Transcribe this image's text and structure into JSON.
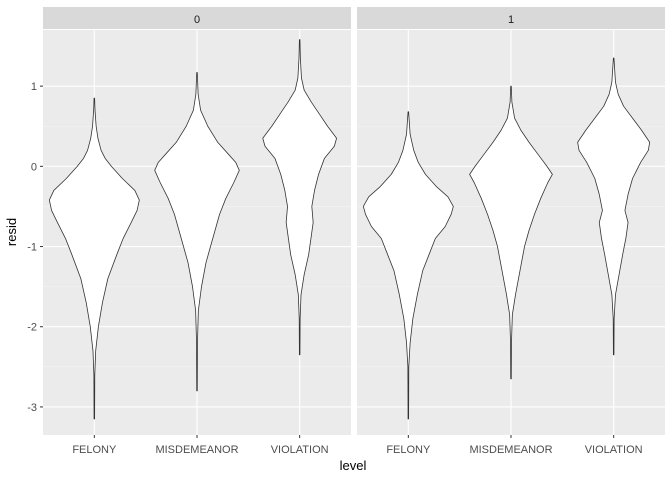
{
  "chart_data": {
    "type": "violin",
    "xlabel": "level",
    "ylabel": "resid",
    "ylim": [
      -3.35,
      1.7
    ],
    "y_ticks": [
      -3,
      -2,
      -1,
      0,
      1
    ],
    "categories": [
      "FELONY",
      "MISDEMEANOR",
      "VIOLATION"
    ],
    "panels": [
      {
        "label": "0",
        "violins": [
          {
            "category": "FELONY",
            "min": -3.15,
            "max": 0.85,
            "profile": [
              [
                -3.15,
                0.006
              ],
              [
                -2.6,
                0.01
              ],
              [
                -2.3,
                0.03
              ],
              [
                -2.0,
                0.09
              ],
              [
                -1.7,
                0.18
              ],
              [
                -1.4,
                0.3
              ],
              [
                -1.1,
                0.5
              ],
              [
                -0.9,
                0.64
              ],
              [
                -0.7,
                0.82
              ],
              [
                -0.55,
                0.95
              ],
              [
                -0.42,
                1.0
              ],
              [
                -0.3,
                0.9
              ],
              [
                -0.15,
                0.62
              ],
              [
                0.0,
                0.38
              ],
              [
                0.1,
                0.24
              ],
              [
                0.2,
                0.15
              ],
              [
                0.35,
                0.08
              ],
              [
                0.5,
                0.04
              ],
              [
                0.7,
                0.015
              ],
              [
                0.85,
                0.006
              ]
            ]
          },
          {
            "category": "MISDEMEANOR",
            "min": -2.8,
            "max": 1.17,
            "profile": [
              [
                -2.8,
                0.006
              ],
              [
                -2.2,
                0.01
              ],
              [
                -1.8,
                0.03
              ],
              [
                -1.5,
                0.1
              ],
              [
                -1.2,
                0.2
              ],
              [
                -1.0,
                0.3
              ],
              [
                -0.8,
                0.4
              ],
              [
                -0.6,
                0.5
              ],
              [
                -0.4,
                0.64
              ],
              [
                -0.2,
                0.82
              ],
              [
                -0.05,
                0.94
              ],
              [
                0.05,
                0.86
              ],
              [
                0.15,
                0.7
              ],
              [
                0.3,
                0.46
              ],
              [
                0.5,
                0.24
              ],
              [
                0.7,
                0.08
              ],
              [
                0.9,
                0.025
              ],
              [
                1.17,
                0.006
              ]
            ]
          },
          {
            "category": "VIOLATION",
            "min": -2.35,
            "max": 1.58,
            "profile": [
              [
                -2.35,
                0.006
              ],
              [
                -1.9,
                0.01
              ],
              [
                -1.6,
                0.03
              ],
              [
                -1.35,
                0.1
              ],
              [
                -1.1,
                0.2
              ],
              [
                -0.9,
                0.25
              ],
              [
                -0.7,
                0.3
              ],
              [
                -0.5,
                0.27
              ],
              [
                -0.3,
                0.33
              ],
              [
                -0.1,
                0.42
              ],
              [
                0.1,
                0.55
              ],
              [
                0.25,
                0.77
              ],
              [
                0.35,
                0.82
              ],
              [
                0.5,
                0.62
              ],
              [
                0.65,
                0.44
              ],
              [
                0.8,
                0.26
              ],
              [
                0.95,
                0.1
              ],
              [
                1.1,
                0.04
              ],
              [
                1.35,
                0.015
              ],
              [
                1.58,
                0.006
              ]
            ]
          }
        ]
      },
      {
        "label": "1",
        "violins": [
          {
            "category": "FELONY",
            "min": -3.15,
            "max": 0.68,
            "profile": [
              [
                -3.15,
                0.006
              ],
              [
                -2.5,
                0.01
              ],
              [
                -2.2,
                0.04
              ],
              [
                -1.9,
                0.1
              ],
              [
                -1.6,
                0.2
              ],
              [
                -1.3,
                0.32
              ],
              [
                -1.1,
                0.46
              ],
              [
                -0.9,
                0.6
              ],
              [
                -0.75,
                0.82
              ],
              [
                -0.6,
                0.95
              ],
              [
                -0.5,
                1.0
              ],
              [
                -0.38,
                0.88
              ],
              [
                -0.25,
                0.62
              ],
              [
                -0.1,
                0.38
              ],
              [
                0.05,
                0.22
              ],
              [
                0.2,
                0.12
              ],
              [
                0.4,
                0.04
              ],
              [
                0.68,
                0.006
              ]
            ]
          },
          {
            "category": "MISDEMEANOR",
            "min": -2.65,
            "max": 1.0,
            "profile": [
              [
                -2.65,
                0.006
              ],
              [
                -2.2,
                0.01
              ],
              [
                -1.85,
                0.03
              ],
              [
                -1.6,
                0.1
              ],
              [
                -1.3,
                0.2
              ],
              [
                -1.0,
                0.3
              ],
              [
                -0.8,
                0.4
              ],
              [
                -0.6,
                0.52
              ],
              [
                -0.4,
                0.66
              ],
              [
                -0.2,
                0.82
              ],
              [
                -0.1,
                0.92
              ],
              [
                0.0,
                0.8
              ],
              [
                0.15,
                0.6
              ],
              [
                0.3,
                0.4
              ],
              [
                0.45,
                0.22
              ],
              [
                0.6,
                0.08
              ],
              [
                0.8,
                0.02
              ],
              [
                1.0,
                0.006
              ]
            ]
          },
          {
            "category": "VIOLATION",
            "min": -2.35,
            "max": 1.35,
            "profile": [
              [
                -2.35,
                0.006
              ],
              [
                -1.9,
                0.01
              ],
              [
                -1.6,
                0.04
              ],
              [
                -1.35,
                0.12
              ],
              [
                -1.1,
                0.2
              ],
              [
                -0.9,
                0.27
              ],
              [
                -0.7,
                0.32
              ],
              [
                -0.55,
                0.25
              ],
              [
                -0.35,
                0.32
              ],
              [
                -0.15,
                0.42
              ],
              [
                0.05,
                0.6
              ],
              [
                0.2,
                0.77
              ],
              [
                0.3,
                0.8
              ],
              [
                0.45,
                0.62
              ],
              [
                0.6,
                0.42
              ],
              [
                0.75,
                0.22
              ],
              [
                0.9,
                0.1
              ],
              [
                1.05,
                0.04
              ],
              [
                1.35,
                0.006
              ]
            ]
          }
        ]
      }
    ]
  }
}
